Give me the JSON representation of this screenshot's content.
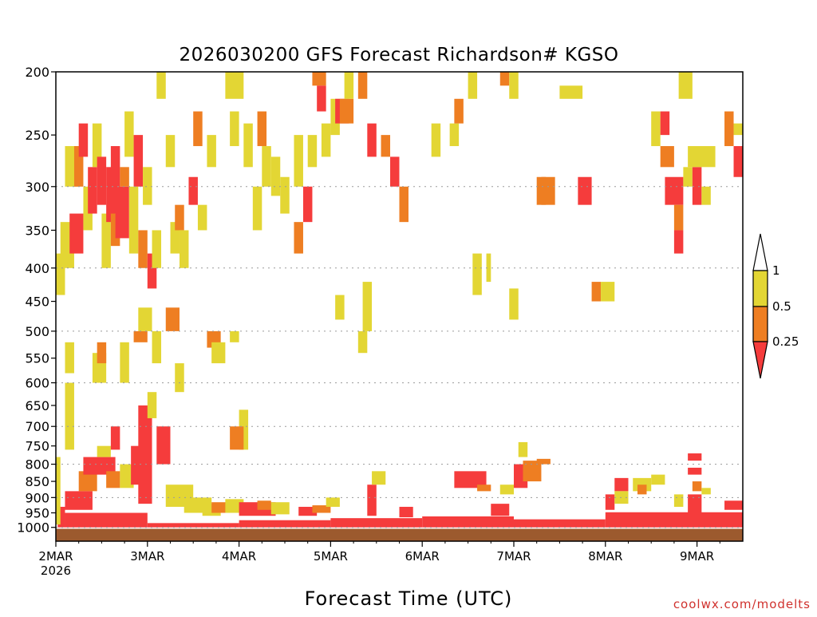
{
  "colors": {
    "lt_025": "#f53c3c",
    "c025_05": "#ee7e22",
    "c05_1": "#e3d634",
    "ground": "#9c5a2e",
    "grid": "#9a9a9a",
    "credit": "#d0312d"
  },
  "chart_data": {
    "type": "heatmap",
    "title": "2026030200 GFS Forecast Richardson# KGSO",
    "xlabel": "Forecast Time (UTC)",
    "ylabel": "",
    "y_scale": "log-pressure",
    "ylim": [
      1050,
      200
    ],
    "xlim_days": [
      0,
      7.5
    ],
    "y_ticks": [
      200,
      250,
      300,
      350,
      400,
      450,
      500,
      550,
      600,
      650,
      700,
      750,
      800,
      850,
      900,
      950,
      1000
    ],
    "gridlines_hpa": [
      300,
      400,
      500,
      600,
      700,
      800,
      900,
      1000
    ],
    "x_ticks": [
      {
        "day": 0,
        "label": "2MAR",
        "sublabel": "2026"
      },
      {
        "day": 1,
        "label": "3MAR"
      },
      {
        "day": 2,
        "label": "4MAR"
      },
      {
        "day": 3,
        "label": "5MAR"
      },
      {
        "day": 4,
        "label": "6MAR"
      },
      {
        "day": 5,
        "label": "7MAR"
      },
      {
        "day": 6,
        "label": "8MAR"
      },
      {
        "day": 7,
        "label": "9MAR"
      }
    ],
    "legend": {
      "placement": "right",
      "levels": [
        "1",
        "0.5",
        "0.25"
      ],
      "bins": [
        {
          "range": "< 0.25",
          "color": "#f53c3c"
        },
        {
          "range": "0.25 - 0.5",
          "color": "#ee7e22"
        },
        {
          "range": "0.5 - 1",
          "color": "#e3d634"
        },
        {
          "range": "> 1",
          "color": "#ffffff"
        }
      ]
    },
    "cells": [
      {
        "d0": 0.02,
        "d1": 0.1,
        "p0": 1000,
        "p1": 930,
        "c": "r"
      },
      {
        "d0": 0.1,
        "d1": 1.0,
        "p0": 1000,
        "p1": 950,
        "c": "r"
      },
      {
        "d0": 1.0,
        "d1": 2.0,
        "p0": 1000,
        "p1": 985,
        "c": "r"
      },
      {
        "d0": 2.0,
        "d1": 3.0,
        "p0": 1000,
        "p1": 975,
        "c": "r"
      },
      {
        "d0": 3.0,
        "d1": 4.0,
        "p0": 1000,
        "p1": 968,
        "c": "r"
      },
      {
        "d0": 4.0,
        "d1": 5.0,
        "p0": 1000,
        "p1": 962,
        "c": "r"
      },
      {
        "d0": 5.0,
        "d1": 6.0,
        "p0": 1000,
        "p1": 972,
        "c": "r"
      },
      {
        "d0": 6.0,
        "d1": 7.5,
        "p0": 1000,
        "p1": 948,
        "c": "r"
      },
      {
        "d0": 0.0,
        "d1": 0.05,
        "p0": 990,
        "p1": 780,
        "c": "y"
      },
      {
        "d0": 0.1,
        "d1": 0.4,
        "p0": 940,
        "p1": 880,
        "c": "r"
      },
      {
        "d0": 0.25,
        "d1": 0.45,
        "p0": 880,
        "p1": 820,
        "c": "o"
      },
      {
        "d0": 0.3,
        "d1": 0.65,
        "p0": 830,
        "p1": 780,
        "c": "r"
      },
      {
        "d0": 0.45,
        "d1": 0.6,
        "p0": 780,
        "p1": 750,
        "c": "y"
      },
      {
        "d0": 0.55,
        "d1": 0.7,
        "p0": 870,
        "p1": 820,
        "c": "o"
      },
      {
        "d0": 0.7,
        "d1": 0.85,
        "p0": 870,
        "p1": 800,
        "c": "y"
      },
      {
        "d0": 0.82,
        "d1": 0.98,
        "p0": 860,
        "p1": 750,
        "c": "r"
      },
      {
        "d0": 0.9,
        "d1": 1.05,
        "p0": 920,
        "p1": 650,
        "c": "r"
      },
      {
        "d0": 1.0,
        "d1": 1.1,
        "p0": 680,
        "p1": 620,
        "c": "y"
      },
      {
        "d0": 1.1,
        "d1": 1.25,
        "p0": 800,
        "p1": 700,
        "c": "r"
      },
      {
        "d0": 1.2,
        "d1": 1.5,
        "p0": 930,
        "p1": 860,
        "c": "y"
      },
      {
        "d0": 1.4,
        "d1": 1.7,
        "p0": 950,
        "p1": 900,
        "c": "y"
      },
      {
        "d0": 1.6,
        "d1": 1.8,
        "p0": 960,
        "p1": 920,
        "c": "y"
      },
      {
        "d0": 1.7,
        "d1": 1.9,
        "p0": 950,
        "p1": 915,
        "c": "o"
      },
      {
        "d0": 1.85,
        "d1": 2.05,
        "p0": 950,
        "p1": 905,
        "c": "y"
      },
      {
        "d0": 2.0,
        "d1": 2.4,
        "p0": 960,
        "p1": 915,
        "c": "r"
      },
      {
        "d0": 2.2,
        "d1": 2.35,
        "p0": 940,
        "p1": 910,
        "c": "o"
      },
      {
        "d0": 2.35,
        "d1": 2.55,
        "p0": 955,
        "p1": 915,
        "c": "y"
      },
      {
        "d0": 2.65,
        "d1": 2.85,
        "p0": 960,
        "p1": 930,
        "c": "r"
      },
      {
        "d0": 2.8,
        "d1": 3.0,
        "p0": 950,
        "p1": 925,
        "c": "o"
      },
      {
        "d0": 2.95,
        "d1": 3.1,
        "p0": 930,
        "p1": 900,
        "c": "y"
      },
      {
        "d0": 3.4,
        "d1": 3.5,
        "p0": 960,
        "p1": 860,
        "c": "r"
      },
      {
        "d0": 3.45,
        "d1": 3.6,
        "p0": 860,
        "p1": 820,
        "c": "y"
      },
      {
        "d0": 3.75,
        "d1": 3.9,
        "p0": 965,
        "p1": 930,
        "c": "r"
      },
      {
        "d0": 4.35,
        "d1": 4.7,
        "p0": 870,
        "p1": 820,
        "c": "r"
      },
      {
        "d0": 4.6,
        "d1": 4.75,
        "p0": 880,
        "p1": 860,
        "c": "o"
      },
      {
        "d0": 4.75,
        "d1": 4.95,
        "p0": 960,
        "p1": 920,
        "c": "r"
      },
      {
        "d0": 4.85,
        "d1": 5.0,
        "p0": 890,
        "p1": 860,
        "c": "y"
      },
      {
        "d0": 5.0,
        "d1": 5.15,
        "p0": 870,
        "p1": 800,
        "c": "r"
      },
      {
        "d0": 5.1,
        "d1": 5.3,
        "p0": 850,
        "p1": 790,
        "c": "o"
      },
      {
        "d0": 5.25,
        "d1": 5.4,
        "p0": 800,
        "p1": 785,
        "c": "o"
      },
      {
        "d0": 6.0,
        "d1": 6.1,
        "p0": 940,
        "p1": 890,
        "c": "r"
      },
      {
        "d0": 6.1,
        "d1": 6.25,
        "p0": 880,
        "p1": 840,
        "c": "r"
      },
      {
        "d0": 6.1,
        "d1": 6.25,
        "p0": 920,
        "p1": 880,
        "c": "y"
      },
      {
        "d0": 6.3,
        "d1": 6.5,
        "p0": 880,
        "p1": 840,
        "c": "y"
      },
      {
        "d0": 6.35,
        "d1": 6.45,
        "p0": 890,
        "p1": 860,
        "c": "o"
      },
      {
        "d0": 6.5,
        "d1": 6.65,
        "p0": 860,
        "p1": 830,
        "c": "y"
      },
      {
        "d0": 6.75,
        "d1": 6.85,
        "p0": 930,
        "p1": 890,
        "c": "y"
      },
      {
        "d0": 6.9,
        "d1": 7.05,
        "p0": 950,
        "p1": 890,
        "c": "r"
      },
      {
        "d0": 6.9,
        "d1": 7.05,
        "p0": 790,
        "p1": 770,
        "c": "r"
      },
      {
        "d0": 6.9,
        "d1": 7.05,
        "p0": 830,
        "p1": 810,
        "c": "r"
      },
      {
        "d0": 6.95,
        "d1": 7.05,
        "p0": 880,
        "p1": 850,
        "c": "o"
      },
      {
        "d0": 7.05,
        "d1": 7.15,
        "p0": 890,
        "p1": 870,
        "c": "y"
      },
      {
        "d0": 7.3,
        "d1": 7.5,
        "p0": 940,
        "p1": 910,
        "c": "r"
      },
      {
        "d0": 0.1,
        "d1": 0.2,
        "p0": 760,
        "p1": 600,
        "c": "y"
      },
      {
        "d0": 0.1,
        "d1": 0.2,
        "p0": 580,
        "p1": 520,
        "c": "y"
      },
      {
        "d0": 0.4,
        "d1": 0.55,
        "p0": 600,
        "p1": 540,
        "c": "y"
      },
      {
        "d0": 0.45,
        "d1": 0.55,
        "p0": 560,
        "p1": 520,
        "c": "o"
      },
      {
        "d0": 0.6,
        "d1": 0.7,
        "p0": 760,
        "p1": 700,
        "c": "r"
      },
      {
        "d0": 0.7,
        "d1": 0.8,
        "p0": 600,
        "p1": 520,
        "c": "y"
      },
      {
        "d0": 0.85,
        "d1": 1.0,
        "p0": 520,
        "p1": 500,
        "c": "o"
      },
      {
        "d0": 0.9,
        "d1": 1.05,
        "p0": 500,
        "p1": 460,
        "c": "y"
      },
      {
        "d0": 1.05,
        "d1": 1.15,
        "p0": 560,
        "p1": 500,
        "c": "y"
      },
      {
        "d0": 1.2,
        "d1": 1.35,
        "p0": 500,
        "p1": 460,
        "c": "o"
      },
      {
        "d0": 1.3,
        "d1": 1.4,
        "p0": 620,
        "p1": 560,
        "c": "y"
      },
      {
        "d0": 1.65,
        "d1": 1.8,
        "p0": 530,
        "p1": 500,
        "c": "o"
      },
      {
        "d0": 1.7,
        "d1": 1.85,
        "p0": 560,
        "p1": 520,
        "c": "y"
      },
      {
        "d0": 1.9,
        "d1": 2.0,
        "p0": 520,
        "p1": 500,
        "c": "y"
      },
      {
        "d0": 2.0,
        "d1": 2.1,
        "p0": 760,
        "p1": 660,
        "c": "y"
      },
      {
        "d0": 1.9,
        "d1": 2.05,
        "p0": 760,
        "p1": 700,
        "c": "o"
      },
      {
        "d0": 3.3,
        "d1": 3.4,
        "p0": 540,
        "p1": 500,
        "c": "y"
      },
      {
        "d0": 3.35,
        "d1": 3.45,
        "p0": 500,
        "p1": 420,
        "c": "y"
      },
      {
        "d0": 3.05,
        "d1": 3.15,
        "p0": 480,
        "p1": 440,
        "c": "y"
      },
      {
        "d0": 4.55,
        "d1": 4.65,
        "p0": 440,
        "p1": 380,
        "c": "y"
      },
      {
        "d0": 4.7,
        "d1": 4.75,
        "p0": 420,
        "p1": 380,
        "c": "y"
      },
      {
        "d0": 4.95,
        "d1": 5.05,
        "p0": 480,
        "p1": 430,
        "c": "y"
      },
      {
        "d0": 5.05,
        "d1": 5.15,
        "p0": 780,
        "p1": 740,
        "c": "y"
      },
      {
        "d0": 5.85,
        "d1": 5.95,
        "p0": 450,
        "p1": 420,
        "c": "o"
      },
      {
        "d0": 5.95,
        "d1": 6.1,
        "p0": 450,
        "p1": 420,
        "c": "y"
      },
      {
        "d0": 0.0,
        "d1": 0.1,
        "p0": 440,
        "p1": 380,
        "c": "y"
      },
      {
        "d0": 0.05,
        "d1": 0.2,
        "p0": 400,
        "p1": 340,
        "c": "y"
      },
      {
        "d0": 0.1,
        "d1": 0.25,
        "p0": 300,
        "p1": 260,
        "c": "y"
      },
      {
        "d0": 0.15,
        "d1": 0.3,
        "p0": 380,
        "p1": 330,
        "c": "r"
      },
      {
        "d0": 0.2,
        "d1": 0.3,
        "p0": 300,
        "p1": 260,
        "c": "o"
      },
      {
        "d0": 0.25,
        "d1": 0.35,
        "p0": 270,
        "p1": 240,
        "c": "r"
      },
      {
        "d0": 0.3,
        "d1": 0.4,
        "p0": 350,
        "p1": 300,
        "c": "y"
      },
      {
        "d0": 0.35,
        "d1": 0.45,
        "p0": 330,
        "p1": 280,
        "c": "r"
      },
      {
        "d0": 0.4,
        "d1": 0.5,
        "p0": 280,
        "p1": 240,
        "c": "y"
      },
      {
        "d0": 0.45,
        "d1": 0.55,
        "p0": 320,
        "p1": 270,
        "c": "r"
      },
      {
        "d0": 0.5,
        "d1": 0.6,
        "p0": 400,
        "p1": 330,
        "c": "y"
      },
      {
        "d0": 0.55,
        "d1": 0.65,
        "p0": 340,
        "p1": 280,
        "c": "r"
      },
      {
        "d0": 0.6,
        "d1": 0.7,
        "p0": 330,
        "p1": 260,
        "c": "r"
      },
      {
        "d0": 0.6,
        "d1": 0.7,
        "p0": 370,
        "p1": 330,
        "c": "o"
      },
      {
        "d0": 0.65,
        "d1": 0.8,
        "p0": 360,
        "p1": 300,
        "c": "r"
      },
      {
        "d0": 0.7,
        "d1": 0.8,
        "p0": 300,
        "p1": 280,
        "c": "o"
      },
      {
        "d0": 0.8,
        "d1": 0.9,
        "p0": 380,
        "p1": 300,
        "c": "y"
      },
      {
        "d0": 0.75,
        "d1": 0.85,
        "p0": 270,
        "p1": 230,
        "c": "y"
      },
      {
        "d0": 0.85,
        "d1": 0.95,
        "p0": 300,
        "p1": 250,
        "c": "r"
      },
      {
        "d0": 0.9,
        "d1": 1.0,
        "p0": 400,
        "p1": 350,
        "c": "o"
      },
      {
        "d0": 0.95,
        "d1": 1.05,
        "p0": 320,
        "p1": 280,
        "c": "y"
      },
      {
        "d0": 1.0,
        "d1": 1.1,
        "p0": 430,
        "p1": 380,
        "c": "r"
      },
      {
        "d0": 1.05,
        "d1": 1.15,
        "p0": 400,
        "p1": 350,
        "c": "y"
      },
      {
        "d0": 1.1,
        "d1": 1.2,
        "p0": 220,
        "p1": 200,
        "c": "y"
      },
      {
        "d0": 1.2,
        "d1": 1.3,
        "p0": 280,
        "p1": 250,
        "c": "y"
      },
      {
        "d0": 1.25,
        "d1": 1.35,
        "p0": 380,
        "p1": 340,
        "c": "y"
      },
      {
        "d0": 1.3,
        "d1": 1.4,
        "p0": 350,
        "p1": 320,
        "c": "o"
      },
      {
        "d0": 1.35,
        "d1": 1.45,
        "p0": 400,
        "p1": 350,
        "c": "y"
      },
      {
        "d0": 1.45,
        "d1": 1.55,
        "p0": 320,
        "p1": 290,
        "c": "r"
      },
      {
        "d0": 1.5,
        "d1": 1.6,
        "p0": 260,
        "p1": 230,
        "c": "o"
      },
      {
        "d0": 1.55,
        "d1": 1.65,
        "p0": 350,
        "p1": 320,
        "c": "y"
      },
      {
        "d0": 1.65,
        "d1": 1.75,
        "p0": 280,
        "p1": 250,
        "c": "y"
      },
      {
        "d0": 1.85,
        "d1": 2.05,
        "p0": 220,
        "p1": 200,
        "c": "y"
      },
      {
        "d0": 1.9,
        "d1": 2.0,
        "p0": 260,
        "p1": 230,
        "c": "y"
      },
      {
        "d0": 2.05,
        "d1": 2.15,
        "p0": 280,
        "p1": 240,
        "c": "y"
      },
      {
        "d0": 2.15,
        "d1": 2.25,
        "p0": 350,
        "p1": 300,
        "c": "y"
      },
      {
        "d0": 2.2,
        "d1": 2.3,
        "p0": 260,
        "p1": 230,
        "c": "o"
      },
      {
        "d0": 2.25,
        "d1": 2.35,
        "p0": 300,
        "p1": 260,
        "c": "y"
      },
      {
        "d0": 2.35,
        "d1": 2.45,
        "p0": 310,
        "p1": 270,
        "c": "y"
      },
      {
        "d0": 2.45,
        "d1": 2.55,
        "p0": 330,
        "p1": 290,
        "c": "y"
      },
      {
        "d0": 2.6,
        "d1": 2.7,
        "p0": 300,
        "p1": 250,
        "c": "y"
      },
      {
        "d0": 2.6,
        "d1": 2.7,
        "p0": 380,
        "p1": 340,
        "c": "o"
      },
      {
        "d0": 2.7,
        "d1": 2.8,
        "p0": 340,
        "p1": 300,
        "c": "r"
      },
      {
        "d0": 2.75,
        "d1": 2.85,
        "p0": 280,
        "p1": 250,
        "c": "y"
      },
      {
        "d0": 2.8,
        "d1": 2.95,
        "p0": 210,
        "p1": 200,
        "c": "o"
      },
      {
        "d0": 2.85,
        "d1": 2.95,
        "p0": 230,
        "p1": 210,
        "c": "r"
      },
      {
        "d0": 2.9,
        "d1": 3.0,
        "p0": 270,
        "p1": 240,
        "c": "y"
      },
      {
        "d0": 3.0,
        "d1": 3.1,
        "p0": 250,
        "p1": 220,
        "c": "y"
      },
      {
        "d0": 3.05,
        "d1": 3.2,
        "p0": 240,
        "p1": 220,
        "c": "r"
      },
      {
        "d0": 3.1,
        "d1": 3.25,
        "p0": 240,
        "p1": 220,
        "c": "o"
      },
      {
        "d0": 3.15,
        "d1": 3.25,
        "p0": 220,
        "p1": 200,
        "c": "y"
      },
      {
        "d0": 3.3,
        "d1": 3.4,
        "p0": 220,
        "p1": 200,
        "c": "o"
      },
      {
        "d0": 3.4,
        "d1": 3.5,
        "p0": 270,
        "p1": 240,
        "c": "r"
      },
      {
        "d0": 3.55,
        "d1": 3.65,
        "p0": 270,
        "p1": 250,
        "c": "o"
      },
      {
        "d0": 3.65,
        "d1": 3.75,
        "p0": 300,
        "p1": 270,
        "c": "r"
      },
      {
        "d0": 3.75,
        "d1": 3.85,
        "p0": 340,
        "p1": 300,
        "c": "o"
      },
      {
        "d0": 4.1,
        "d1": 4.2,
        "p0": 270,
        "p1": 240,
        "c": "y"
      },
      {
        "d0": 4.3,
        "d1": 4.4,
        "p0": 260,
        "p1": 240,
        "c": "y"
      },
      {
        "d0": 4.35,
        "d1": 4.45,
        "p0": 240,
        "p1": 220,
        "c": "o"
      },
      {
        "d0": 4.5,
        "d1": 4.6,
        "p0": 220,
        "p1": 200,
        "c": "y"
      },
      {
        "d0": 4.85,
        "d1": 4.95,
        "p0": 210,
        "p1": 200,
        "c": "o"
      },
      {
        "d0": 4.95,
        "d1": 5.05,
        "p0": 220,
        "p1": 200,
        "c": "y"
      },
      {
        "d0": 5.25,
        "d1": 5.35,
        "p0": 320,
        "p1": 290,
        "c": "o"
      },
      {
        "d0": 5.5,
        "d1": 5.75,
        "p0": 220,
        "p1": 210,
        "c": "y"
      },
      {
        "d0": 5.7,
        "d1": 5.85,
        "p0": 320,
        "p1": 290,
        "c": "r"
      },
      {
        "d0": 5.3,
        "d1": 5.45,
        "p0": 320,
        "p1": 290,
        "c": "o"
      },
      {
        "d0": 6.5,
        "d1": 6.6,
        "p0": 260,
        "p1": 230,
        "c": "y"
      },
      {
        "d0": 6.6,
        "d1": 6.7,
        "p0": 250,
        "p1": 230,
        "c": "r"
      },
      {
        "d0": 6.6,
        "d1": 6.75,
        "p0": 280,
        "p1": 260,
        "c": "o"
      },
      {
        "d0": 6.65,
        "d1": 6.85,
        "p0": 320,
        "p1": 290,
        "c": "r"
      },
      {
        "d0": 6.8,
        "d1": 6.95,
        "p0": 220,
        "p1": 200,
        "c": "y"
      },
      {
        "d0": 6.75,
        "d1": 6.85,
        "p0": 350,
        "p1": 320,
        "c": "o"
      },
      {
        "d0": 6.75,
        "d1": 6.85,
        "p0": 380,
        "p1": 350,
        "c": "r"
      },
      {
        "d0": 6.85,
        "d1": 6.95,
        "p0": 300,
        "p1": 280,
        "c": "y"
      },
      {
        "d0": 6.95,
        "d1": 7.05,
        "p0": 320,
        "p1": 280,
        "c": "r"
      },
      {
        "d0": 6.9,
        "d1": 7.2,
        "p0": 280,
        "p1": 260,
        "c": "y"
      },
      {
        "d0": 7.05,
        "d1": 7.15,
        "p0": 320,
        "p1": 300,
        "c": "y"
      },
      {
        "d0": 7.3,
        "d1": 7.4,
        "p0": 260,
        "p1": 230,
        "c": "o"
      },
      {
        "d0": 7.4,
        "d1": 7.5,
        "p0": 290,
        "p1": 260,
        "c": "r"
      },
      {
        "d0": 7.4,
        "d1": 7.5,
        "p0": 250,
        "p1": 240,
        "c": "y"
      }
    ]
  }
}
